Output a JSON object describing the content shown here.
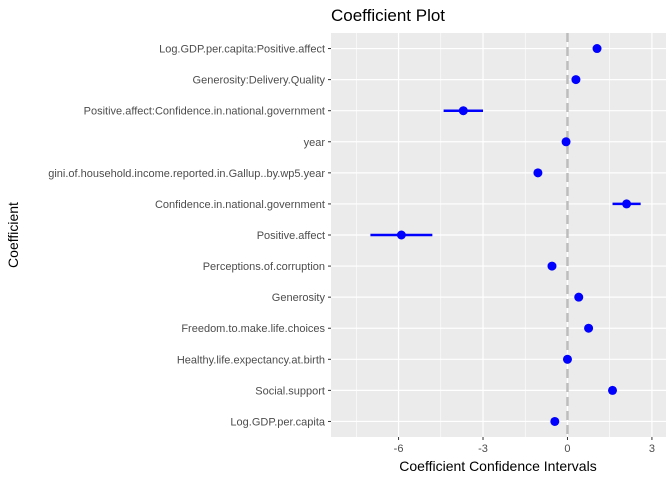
{
  "chart_data": {
    "type": "scatter",
    "title": "Coefficient Plot",
    "xlabel": "Coefficient Confidence Intervals",
    "ylabel": "Coefficient",
    "xlim": [
      -8.4,
      3.5
    ],
    "x_ticks": [
      -6,
      -3,
      0,
      3
    ],
    "x_tick_labels": [
      "-6",
      "-3",
      "0",
      "3"
    ],
    "reference_line_x": 0,
    "grid": true,
    "legend": "none",
    "colors": {
      "point": "#0000ff",
      "interval": "#0000ff",
      "panel": "#ebebeb",
      "grid": "#ffffff",
      "reference": "#bdbdbd"
    },
    "coefficients": [
      {
        "name": "Log.GDP.per.capita:Positive.affect",
        "estimate": 1.05,
        "low": 1.0,
        "high": 1.1
      },
      {
        "name": "Generosity:Delivery.Quality",
        "estimate": 0.3,
        "low": 0.25,
        "high": 0.35
      },
      {
        "name": "Positive.affect:Confidence.in.national.government",
        "estimate": -3.7,
        "low": -4.4,
        "high": -3.0
      },
      {
        "name": "year",
        "estimate": -0.05,
        "low": -0.1,
        "high": 0.0
      },
      {
        "name": "gini.of.household.income.reported.in.Gallup..by.wp5.year",
        "estimate": -1.05,
        "low": -1.1,
        "high": -1.0
      },
      {
        "name": "Confidence.in.national.government",
        "estimate": 2.1,
        "low": 1.6,
        "high": 2.6
      },
      {
        "name": "Positive.affect",
        "estimate": -5.9,
        "low": -7.0,
        "high": -4.8
      },
      {
        "name": "Perceptions.of.corruption",
        "estimate": -0.55,
        "low": -0.6,
        "high": -0.5
      },
      {
        "name": "Generosity",
        "estimate": 0.4,
        "low": 0.35,
        "high": 0.45
      },
      {
        "name": "Freedom.to.make.life.choices",
        "estimate": 0.75,
        "low": 0.7,
        "high": 0.8
      },
      {
        "name": "Healthy.life.expectancy.at.birth",
        "estimate": 0.0,
        "low": -0.05,
        "high": 0.05
      },
      {
        "name": "Social.support",
        "estimate": 1.6,
        "low": 1.55,
        "high": 1.65
      },
      {
        "name": "Log.GDP.per.capita",
        "estimate": -0.45,
        "low": -0.5,
        "high": -0.4
      }
    ]
  }
}
